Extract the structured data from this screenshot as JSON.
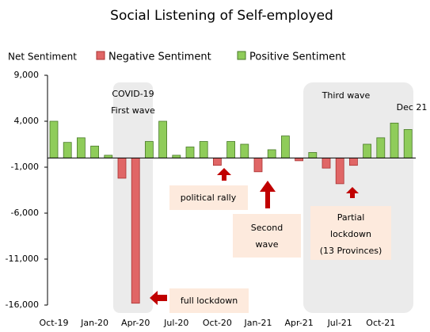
{
  "chart_data": {
    "type": "bar",
    "title": "Social Listening of Self-employed",
    "ylabel": "Net Sentiment",
    "categories": [
      "Oct-19",
      null,
      null,
      "Jan-20",
      null,
      null,
      "Apr-20",
      null,
      null,
      "Jul-20",
      null,
      null,
      "Oct-20",
      null,
      null,
      "Jan-21",
      null,
      null,
      "Apr-21",
      null,
      null,
      "Jul-21",
      null,
      null,
      "Oct-21",
      null,
      null
    ],
    "series": [
      {
        "name": "Negative Sentiment",
        "color": "#e06666",
        "values": [
          null,
          null,
          null,
          null,
          null,
          -2200,
          -15800,
          null,
          null,
          null,
          null,
          null,
          -800,
          null,
          null,
          -1500,
          null,
          null,
          -300,
          null,
          -1100,
          -2800,
          -800,
          null,
          null,
          null,
          null
        ]
      },
      {
        "name": "Positive Sentiment",
        "color": "#8fcc5a",
        "values": [
          4000,
          1700,
          2200,
          1300,
          300,
          null,
          null,
          1800,
          4000,
          300,
          1200,
          1800,
          null,
          1800,
          1500,
          null,
          900,
          2400,
          null,
          600,
          null,
          null,
          null,
          1500,
          2200,
          3800,
          3100
        ]
      }
    ],
    "ylim": [
      -16000,
      9000
    ],
    "yticks": [
      {
        "value": 9000,
        "label": "9,000"
      },
      {
        "value": 4000,
        "label": "4,000"
      },
      {
        "value": -1000,
        "label": "-1,000"
      },
      {
        "value": -6000,
        "label": "-6,000"
      },
      {
        "value": -11000,
        "label": "-11,000"
      },
      {
        "value": -16000,
        "label": "-16,000"
      }
    ],
    "legend": "top",
    "annotations": [
      {
        "lines": [
          "COVID-19",
          "First wave"
        ]
      },
      {
        "lines": [
          "Third wave"
        ]
      },
      {
        "lines": [
          "Dec 21"
        ]
      },
      {
        "lines": [
          "political rally"
        ]
      },
      {
        "lines": [
          "Second",
          "wave"
        ]
      },
      {
        "lines": [
          "Partial",
          "lockdown",
          "(13 Provinces)"
        ]
      },
      {
        "lines": [
          "full lockdown"
        ]
      }
    ]
  }
}
